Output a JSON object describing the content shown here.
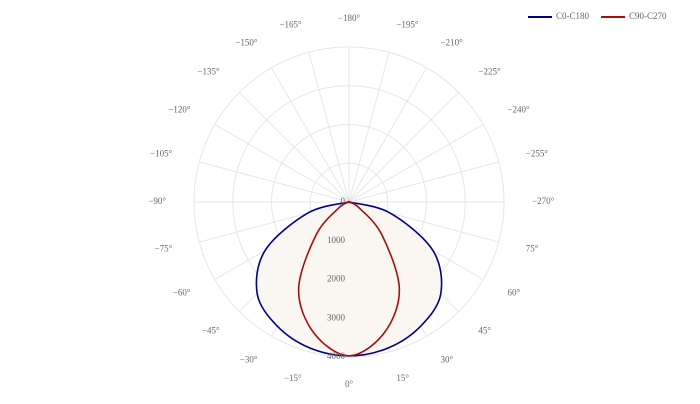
{
  "chart_data": {
    "type": "polar",
    "theta": [
      -90,
      -75,
      -60,
      -45,
      -30,
      -15,
      0,
      15,
      30,
      45,
      60,
      75,
      90
    ],
    "series": [
      {
        "name": "C0-C180",
        "color": "#00008b",
        "values": [
          0,
          1100,
          2500,
          3350,
          3700,
          3900,
          3970,
          3900,
          3700,
          3350,
          2500,
          1100,
          0
        ]
      },
      {
        "name": "C90-C270",
        "color": "#a50f0f",
        "values": [
          0,
          0,
          300,
          1200,
          2600,
          3500,
          3970,
          3500,
          2600,
          1200,
          300,
          0,
          0
        ]
      }
    ],
    "fill": "#f9f6f1",
    "rlim": [
      0,
      4000
    ],
    "rticks": [
      0,
      1000,
      2000,
      3000,
      4000
    ],
    "thetaticks": [
      {
        "value": 0,
        "label": "0°"
      },
      {
        "value": 15,
        "label": "15°"
      },
      {
        "value": 30,
        "label": "30°"
      },
      {
        "value": 45,
        "label": "45°"
      },
      {
        "value": 60,
        "label": "60°"
      },
      {
        "value": 75,
        "label": "75°"
      },
      {
        "value": -270,
        "label": "−270°"
      },
      {
        "value": -255,
        "label": "−255°"
      },
      {
        "value": -240,
        "label": "−240°"
      },
      {
        "value": -225,
        "label": "−225°"
      },
      {
        "value": -210,
        "label": "−210°"
      },
      {
        "value": -195,
        "label": "−195°"
      },
      {
        "value": -180,
        "label": "−180°"
      },
      {
        "value": -165,
        "label": "−165°"
      },
      {
        "value": -150,
        "label": "−150°"
      },
      {
        "value": -135,
        "label": "−135°"
      },
      {
        "value": -120,
        "label": "−120°"
      },
      {
        "value": -105,
        "label": "−105°"
      },
      {
        "value": -90,
        "label": "−90°"
      },
      {
        "value": -75,
        "label": "−75°"
      },
      {
        "value": -60,
        "label": "−60°"
      },
      {
        "value": -45,
        "label": "−45°"
      },
      {
        "value": -30,
        "label": "−30°"
      },
      {
        "value": -15,
        "label": "−15°"
      }
    ],
    "grid": true,
    "legend": "top-right"
  }
}
